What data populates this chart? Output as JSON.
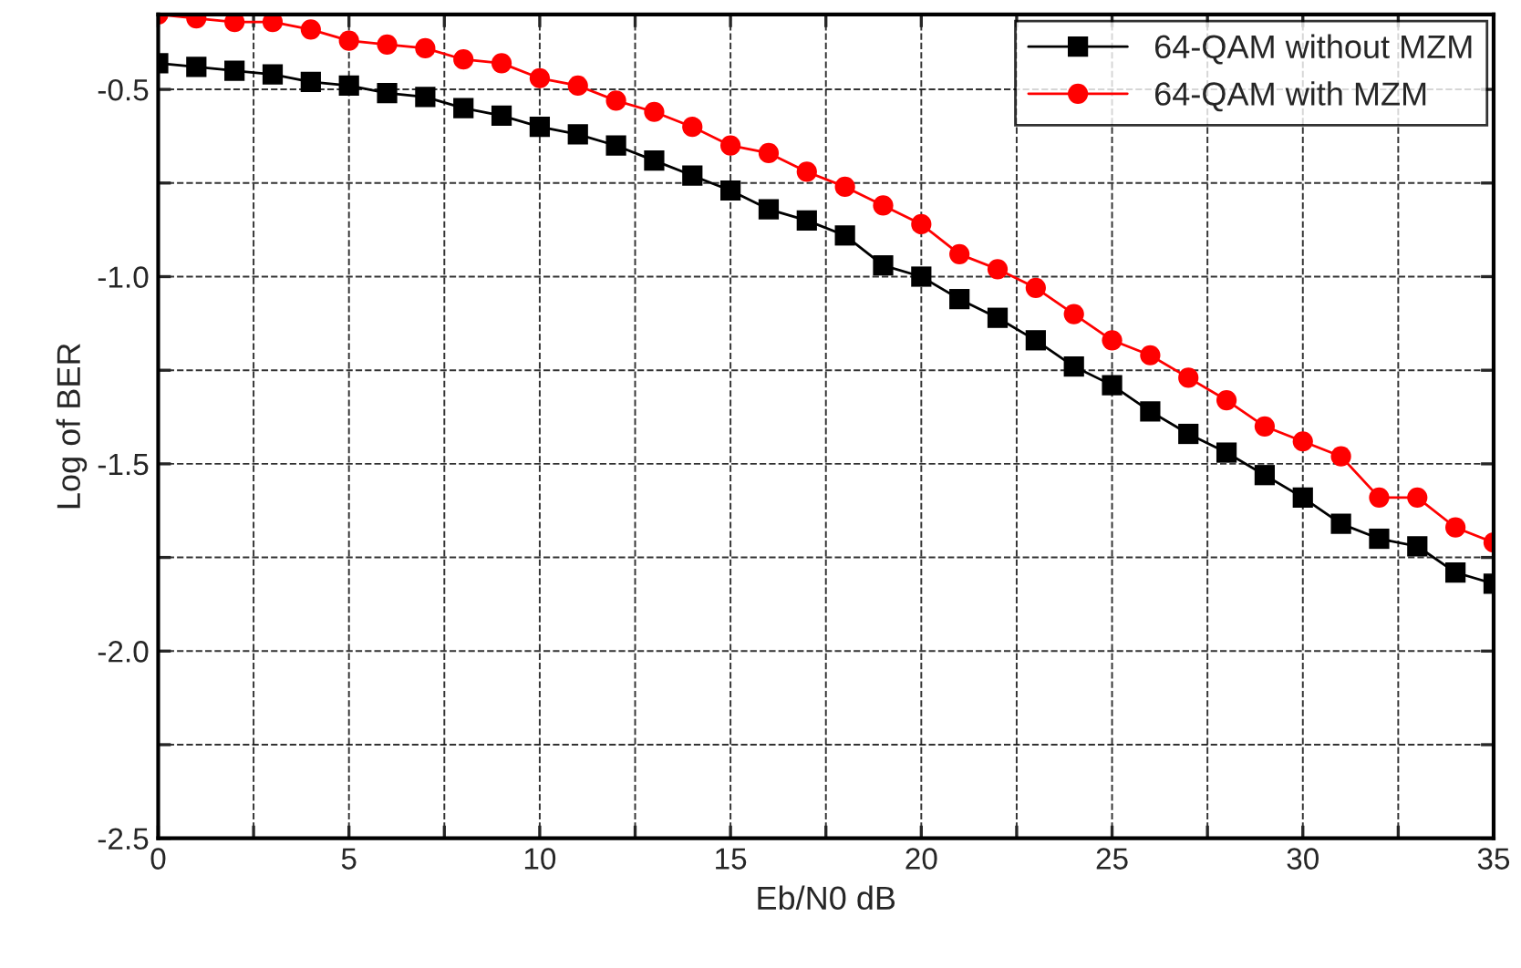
{
  "chart_data": {
    "type": "line",
    "xlabel": "Eb/N0 dB",
    "ylabel": "Log of BER",
    "x": [
      0,
      1,
      2,
      3,
      4,
      5,
      6,
      7,
      8,
      9,
      10,
      11,
      12,
      13,
      14,
      15,
      16,
      17,
      18,
      19,
      20,
      21,
      22,
      23,
      24,
      25,
      26,
      27,
      28,
      29,
      30,
      31,
      32,
      33,
      34,
      35
    ],
    "series": [
      {
        "name": "64-QAM without MZM",
        "color": "#000000",
        "marker": "square",
        "values": [
          -0.43,
          -0.44,
          -0.45,
          -0.46,
          -0.48,
          -0.49,
          -0.51,
          -0.52,
          -0.55,
          -0.57,
          -0.6,
          -0.62,
          -0.65,
          -0.69,
          -0.73,
          -0.77,
          -0.82,
          -0.85,
          -0.89,
          -0.97,
          -1.0,
          -1.06,
          -1.11,
          -1.17,
          -1.24,
          -1.29,
          -1.36,
          -1.42,
          -1.47,
          -1.53,
          -1.59,
          -1.66,
          -1.7,
          -1.72,
          -1.79,
          -1.82
        ]
      },
      {
        "name": "64-QAM with MZM",
        "color": "#ff0000",
        "marker": "circle",
        "values": [
          -0.3,
          -0.31,
          -0.32,
          -0.32,
          -0.34,
          -0.37,
          -0.38,
          -0.39,
          -0.42,
          -0.43,
          -0.47,
          -0.49,
          -0.53,
          -0.56,
          -0.6,
          -0.65,
          -0.67,
          -0.72,
          -0.76,
          -0.81,
          -0.86,
          -0.94,
          -0.98,
          -1.03,
          -1.1,
          -1.17,
          -1.21,
          -1.27,
          -1.33,
          -1.4,
          -1.44,
          -1.48,
          -1.59,
          -1.59,
          -1.67,
          -1.71
        ]
      }
    ],
    "xlim": [
      0,
      35
    ],
    "ylim": [
      -2.5,
      -0.3
    ],
    "xticks": [
      0,
      {
        "value": 2.5,
        "label": null
      },
      5,
      {
        "value": 7.5,
        "label": null
      },
      10,
      {
        "value": 12.5,
        "label": null
      },
      15,
      {
        "value": 17.5,
        "label": null
      },
      20,
      {
        "value": 22.5,
        "label": null
      },
      25,
      {
        "value": 27.5,
        "label": null
      },
      30,
      {
        "value": 32.5,
        "label": null
      },
      35
    ],
    "yticks": [
      {
        "value": -2.5,
        "label": "-2.5"
      },
      {
        "value": -2.25,
        "label": null
      },
      {
        "value": -2.0,
        "label": "-2.0"
      },
      {
        "value": -1.75,
        "label": null
      },
      {
        "value": -1.5,
        "label": "-1.5"
      },
      {
        "value": -1.25,
        "label": null
      },
      {
        "value": -1.0,
        "label": "-1.0"
      },
      {
        "value": -0.75,
        "label": null
      },
      {
        "value": -0.5,
        "label": "-0.5"
      }
    ],
    "grid": true,
    "legend": "top right",
    "line_style": "solid"
  }
}
